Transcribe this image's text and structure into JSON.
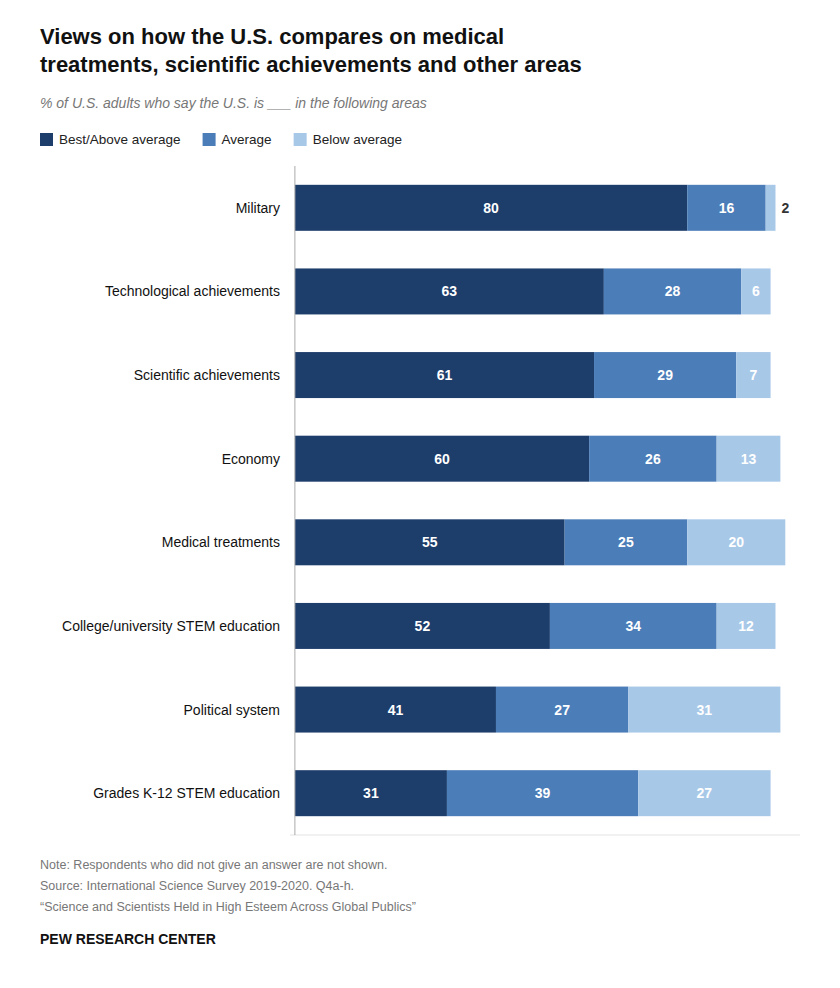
{
  "chart_data": {
    "type": "bar",
    "orientation": "horizontal",
    "stacked": true,
    "data_labels": true,
    "tick_labels": "y",
    "title": "Views on how the U.S. compares on medical\ntreatments, scientific achievements and other areas",
    "subtitle": "% of U.S. adults who say the U.S. is ___ in the following areas",
    "categories": [
      "Military",
      "Technological achievements",
      "Scientific achievements",
      "Economy",
      "Medical treatments",
      "College/university STEM education",
      "Political system",
      "Grades K-12 STEM education"
    ],
    "series": [
      {
        "name": "Best/Above average",
        "color": "#1d3d6b",
        "values": [
          80,
          63,
          61,
          60,
          55,
          52,
          41,
          31
        ]
      },
      {
        "name": "Average",
        "color": "#4b7db8",
        "values": [
          16,
          28,
          29,
          26,
          25,
          34,
          27,
          39
        ]
      },
      {
        "name": "Below average",
        "color": "#a8c8e8",
        "values": [
          2,
          6,
          7,
          13,
          20,
          12,
          31,
          27
        ]
      }
    ],
    "xlim": [
      -1,
      103
    ],
    "notes": [
      "Note: Respondents who did not give an answer are not shown.",
      "Source: International Science Survey 2019-2020. Q4a-h.",
      "“Science and Scientists Held in High Esteem Across Global Publics”"
    ],
    "footer": "PEW RESEARCH CENTER"
  }
}
